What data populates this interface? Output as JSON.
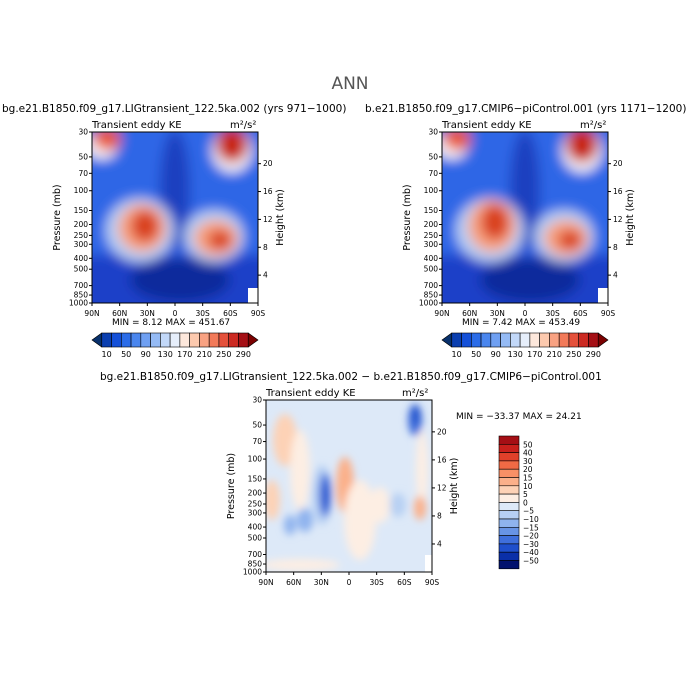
{
  "page": {
    "title": "ANN"
  },
  "panels": [
    {
      "id": "left",
      "case_title": "bg.e21.B1850.f09_g17.LIGtransient_122.5ka.002 (yrs 971−1000)",
      "field_label": "Transient eddy KE",
      "units": "m²/s²",
      "minmax": "MIN =    8.12   MAX = 451.67"
    },
    {
      "id": "right",
      "case_title": "b.e21.B1850.f09_g17.CMIP6−piControl.001 (yrs 1171−1200)",
      "field_label": "Transient eddy KE",
      "units": "m²/s²",
      "minmax": "MIN =    7.42   MAX = 453.49"
    },
    {
      "id": "diff",
      "case_title": "bg.e21.B1850.f09_g17.LIGtransient_122.5ka.002 − b.e21.B1850.f09_g17.CMIP6−piControl.001",
      "field_label": "Transient eddy KE",
      "units": "m²/s²",
      "minmax": "MIN = −33.37   MAX =  24.21"
    }
  ],
  "chart_data": [
    {
      "type": "heatmap",
      "title": "Transient eddy KE",
      "xlabel": "",
      "ylabel": "Pressure (mb)",
      "ylabel_right": "Height (km)",
      "x_ticks": [
        "90N",
        "60N",
        "30N",
        "0",
        "30S",
        "60S",
        "90S"
      ],
      "y_ticks": [
        "30",
        "50",
        "70",
        "100",
        "150",
        "200",
        "250",
        "300",
        "400",
        "500",
        "700",
        "850",
        "1000"
      ],
      "y_right_ticks": [
        "4",
        "8",
        "12",
        "16",
        "20"
      ],
      "ylim": [
        1000,
        30
      ],
      "xlim": [
        90,
        -90
      ],
      "min": 8.12,
      "max": 451.67,
      "colorbar": {
        "labels": [
          "10",
          "50",
          "90",
          "130",
          "170",
          "210",
          "250",
          "290"
        ],
        "colors": [
          "#08306b",
          "#0b3fb0",
          "#1450d8",
          "#2b6ce8",
          "#4a86ee",
          "#6fa0f2",
          "#95bbf5",
          "#c2d8f8",
          "#e6eefa",
          "#fde8dc",
          "#fcc9ae",
          "#f9a282",
          "#f27a59",
          "#e4503a",
          "#cc2a22",
          "#a50f15",
          "#7a0000"
        ]
      },
      "features": [
        {
          "lat": 42,
          "p": 220,
          "value": 420,
          "note": "NH midlatitude jet maximum"
        },
        {
          "lat": -48,
          "p": 270,
          "value": 440,
          "note": "SH midlatitude jet maximum"
        },
        {
          "lat": 72,
          "p": 30,
          "value": 300,
          "note": "NH upper-level maximum"
        },
        {
          "lat": -62,
          "p": 30,
          "value": 450,
          "note": "SH upper-level maximum"
        }
      ]
    },
    {
      "type": "heatmap",
      "title": "Transient eddy KE",
      "xlabel": "",
      "ylabel": "Pressure (mb)",
      "ylabel_right": "Height (km)",
      "x_ticks": [
        "90N",
        "60N",
        "30N",
        "0",
        "30S",
        "60S",
        "90S"
      ],
      "y_ticks": [
        "30",
        "50",
        "70",
        "100",
        "150",
        "200",
        "250",
        "300",
        "400",
        "500",
        "700",
        "850",
        "1000"
      ],
      "y_right_ticks": [
        "4",
        "8",
        "12",
        "16",
        "20"
      ],
      "ylim": [
        1000,
        30
      ],
      "xlim": [
        90,
        -90
      ],
      "min": 7.42,
      "max": 453.49,
      "colorbar": {
        "labels": [
          "10",
          "50",
          "90",
          "130",
          "170",
          "210",
          "250",
          "290"
        ],
        "colors": [
          "#08306b",
          "#0b3fb0",
          "#1450d8",
          "#2b6ce8",
          "#4a86ee",
          "#6fa0f2",
          "#95bbf5",
          "#c2d8f8",
          "#e6eefa",
          "#fde8dc",
          "#fcc9ae",
          "#f9a282",
          "#f27a59",
          "#e4503a",
          "#cc2a22",
          "#a50f15",
          "#7a0000"
        ]
      },
      "features": [
        {
          "lat": 40,
          "p": 220,
          "value": 430,
          "note": "NH midlatitude jet maximum"
        },
        {
          "lat": -48,
          "p": 270,
          "value": 440,
          "note": "SH midlatitude jet maximum"
        },
        {
          "lat": 72,
          "p": 30,
          "value": 300,
          "note": "NH upper-level maximum"
        },
        {
          "lat": -62,
          "p": 30,
          "value": 450,
          "note": "SH upper-level maximum"
        }
      ]
    },
    {
      "type": "heatmap",
      "title": "Transient eddy KE",
      "xlabel": "",
      "ylabel": "Pressure (mb)",
      "ylabel_right": "Height (km)",
      "x_ticks": [
        "90N",
        "60N",
        "30N",
        "0",
        "30S",
        "60S",
        "90S"
      ],
      "y_ticks": [
        "30",
        "50",
        "70",
        "100",
        "150",
        "200",
        "250",
        "300",
        "400",
        "500",
        "700",
        "850",
        "1000"
      ],
      "y_right_ticks": [
        "4",
        "8",
        "12",
        "16",
        "20"
      ],
      "ylim": [
        1000,
        30
      ],
      "xlim": [
        90,
        -90
      ],
      "min": -33.37,
      "max": 24.21,
      "colorbar": {
        "labels": [
          "50",
          "40",
          "30",
          "20",
          "15",
          "10",
          "5",
          "0",
          "−5",
          "−10",
          "−15",
          "−20",
          "−30",
          "−40",
          "−50"
        ],
        "colors": [
          "#a50f15",
          "#c8201c",
          "#e0402a",
          "#f06a45",
          "#f89066",
          "#fbb08a",
          "#fdd2b6",
          "#fdeee3",
          "#dde9f8",
          "#b7d0f3",
          "#8fb3ee",
          "#6894e6",
          "#3f6fdc",
          "#1f4fcc",
          "#0a2fa8",
          "#02126e"
        ]
      },
      "features": [
        {
          "lat": 22,
          "p": 230,
          "value": -33,
          "note": "negative minimum"
        },
        {
          "lat": -68,
          "p": 40,
          "value": -30,
          "note": "negative upper-level anomaly"
        },
        {
          "lat": 10,
          "p": 180,
          "value": 20,
          "note": "positive anomaly"
        },
        {
          "lat": -18,
          "p": 700,
          "value": 15,
          "note": "positive lower-level anomaly"
        }
      ]
    }
  ]
}
